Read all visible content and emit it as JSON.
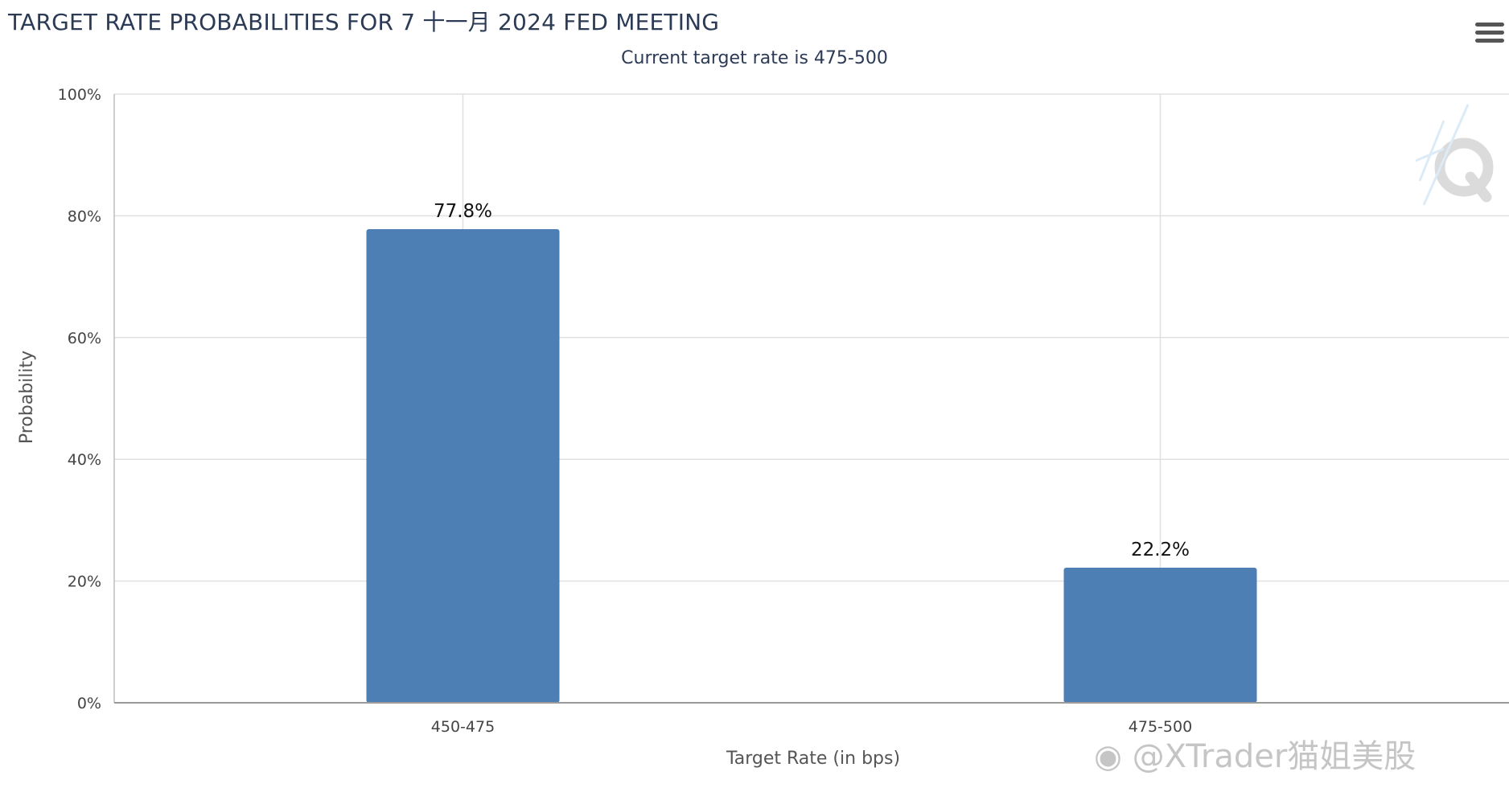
{
  "header": {
    "title": "TARGET RATE PROBABILITIES FOR 7 十一月 2024 FED MEETING",
    "subtitle": "Current target rate is 475-500",
    "menu_icon": "hamburger-menu-icon"
  },
  "watermark": {
    "text": "@XTrader猫姐美股",
    "logo_icon": "weibo-icon"
  },
  "chart_data": {
    "type": "bar",
    "title": "TARGET RATE PROBABILITIES FOR 7 十一月 2024 FED MEETING",
    "subtitle": "Current target rate is 475-500",
    "categories": [
      "450-475",
      "475-500"
    ],
    "values": [
      77.8,
      22.2
    ],
    "data_labels": [
      "77.8%",
      "22.2%"
    ],
    "xlabel": "Target Rate (in bps)",
    "ylabel": "Probability",
    "ylim": [
      0,
      100
    ],
    "yticks": [
      "0%",
      "20%",
      "40%",
      "60%",
      "80%",
      "100%"
    ],
    "grid": true,
    "bar_color": "#4d7fb4"
  }
}
